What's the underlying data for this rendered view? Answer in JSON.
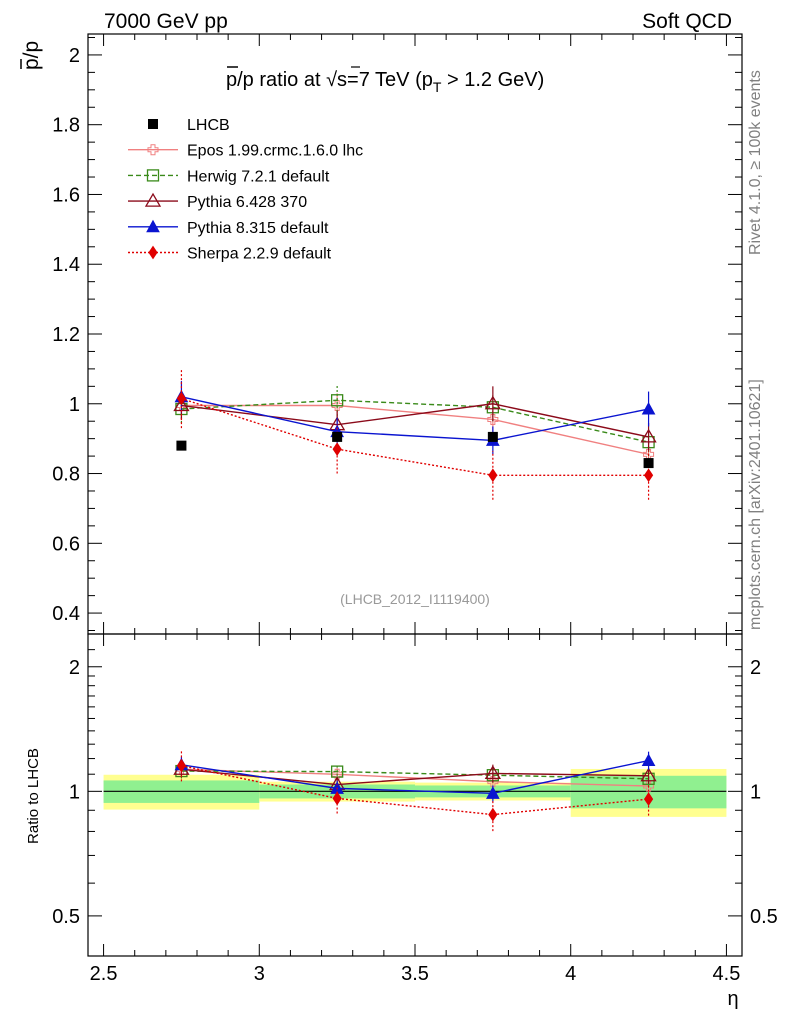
{
  "header": {
    "left_label": "7000 GeV pp",
    "right_label": "Soft QCD"
  },
  "side_labels": {
    "rivet": "Rivet 4.1.0, ≥ 100k events",
    "mcplots": "mcplots.cern.ch [arXiv:2401.10621]"
  },
  "chart_data": {
    "type": "line",
    "title": "p̄/p ratio at √s=7 TeV (p_T > 1.2 GeV)",
    "title_parts": {
      "pbar": "p",
      "ratio_at": "/p ratio at ",
      "sqrt": "√",
      "s_eq": "s=7 TeV (p",
      "sub_t": "T",
      "tail": " > 1.2 GeV)"
    },
    "ylabel_main": {
      "bar": "p",
      "rest": "/p"
    },
    "xlabel": "η",
    "ylabel_ratio": "Ratio to LHCB",
    "analysis_id": "(LHCB_2012_I1119400)",
    "xlim": [
      2.45,
      4.55
    ],
    "ylim_main": [
      0.34,
      2.06
    ],
    "ratio_ylim": [
      0.4,
      2.4
    ],
    "ratio_scale": "log",
    "x_ticks": [
      "2.5",
      "3",
      "3.5",
      "4",
      "4.5"
    ],
    "y_ticks_main": [
      "0.4",
      "0.6",
      "0.8",
      "1",
      "1.2",
      "1.4",
      "1.6",
      "1.8",
      "2"
    ],
    "y_ticks_ratio": [
      "0.5",
      "1",
      "2"
    ],
    "data": {
      "name": "LHCB",
      "x": [
        2.75,
        3.25,
        3.75,
        4.25
      ],
      "xerr": [
        0.25,
        0.25,
        0.25,
        0.25
      ],
      "y": [
        0.88,
        0.905,
        0.905,
        0.83
      ],
      "band_inner": [
        0.055,
        0.035,
        0.03,
        0.075
      ],
      "band_outer": [
        0.085,
        0.05,
        0.045,
        0.11
      ]
    },
    "series": [
      {
        "name": "Epos 1.99.crmc.1.6.0 lhc",
        "color": "#f08080",
        "dash": "",
        "marker": "cross-open",
        "x": [
          2.75,
          3.25,
          3.75,
          4.25
        ],
        "y": [
          0.995,
          0.995,
          0.955,
          0.855
        ],
        "err": [
          0.04,
          0.035,
          0.04,
          0.04
        ]
      },
      {
        "name": "Herwig 7.2.1 default",
        "color": "#3a8a1a",
        "dash": "5,3",
        "marker": "square-open",
        "x": [
          2.75,
          3.25,
          3.75,
          4.25
        ],
        "y": [
          0.985,
          1.01,
          0.99,
          0.89
        ],
        "err": [
          0.04,
          0.045,
          0.04,
          0.04
        ]
      },
      {
        "name": "Pythia 6.428 370",
        "color": "#8b0a1a",
        "dash": "",
        "marker": "triangle-open",
        "x": [
          2.75,
          3.25,
          3.75,
          4.25
        ],
        "y": [
          0.995,
          0.94,
          1.0,
          0.905
        ],
        "err": [
          0.04,
          0.04,
          0.05,
          0.04
        ]
      },
      {
        "name": "Pythia 8.315 default",
        "color": "#0a14d0",
        "dash": "",
        "marker": "triangle-filled",
        "x": [
          2.75,
          3.25,
          3.75,
          4.25
        ],
        "y": [
          1.02,
          0.92,
          0.895,
          0.985
        ],
        "err": [
          0.045,
          0.04,
          0.04,
          0.05
        ]
      },
      {
        "name": "Sherpa 2.2.9 default",
        "color": "#e00000",
        "dash": "2,2",
        "marker": "diamond-filled",
        "x": [
          2.75,
          3.25,
          3.75,
          4.25
        ],
        "y": [
          1.015,
          0.87,
          0.795,
          0.795
        ],
        "err": [
          0.085,
          0.07,
          0.07,
          0.07
        ]
      }
    ],
    "colors": {
      "band_inner": "#90f090",
      "band_outer": "#ffff90",
      "analysis_id_text": "#999999",
      "side_text": "#808080"
    }
  }
}
